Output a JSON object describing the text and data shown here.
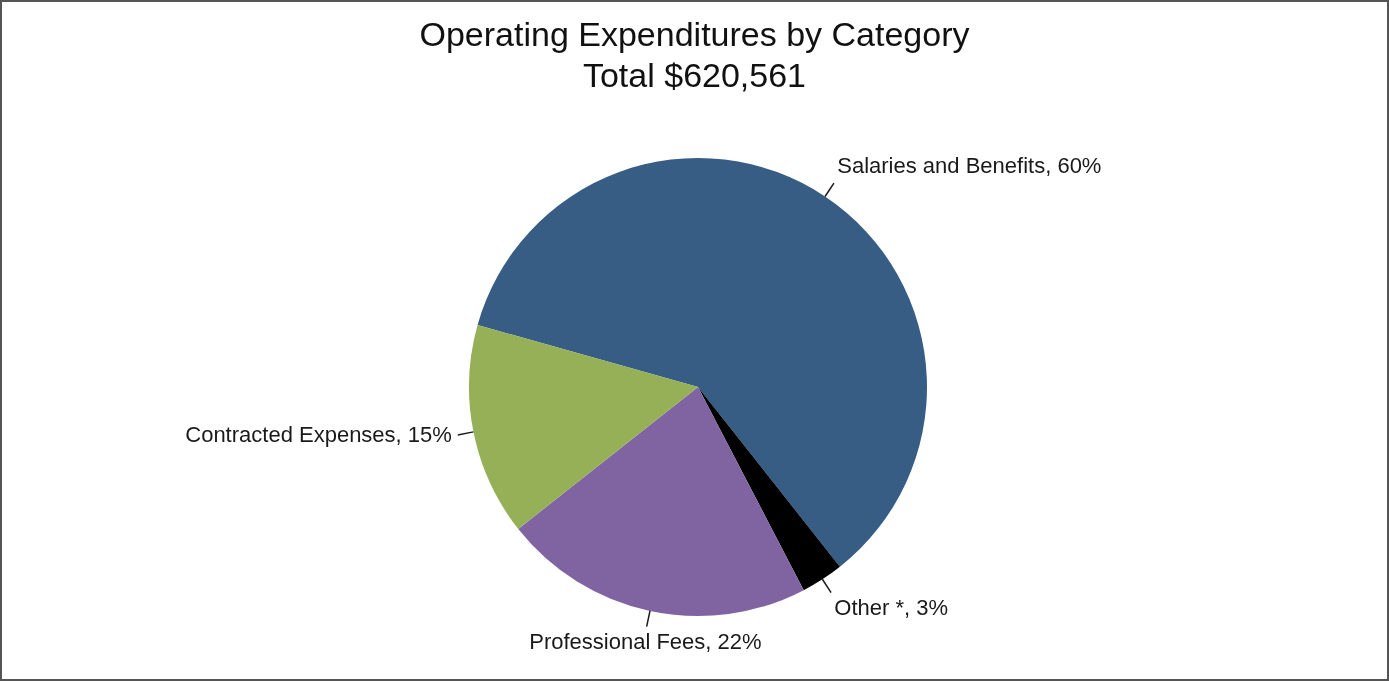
{
  "chart_data": {
    "type": "pie",
    "title": "Operating Expenditures by Category",
    "subtitle": "Total $620,561",
    "categories": [
      "Salaries and Benefits",
      "Other *",
      "Professional Fees",
      "Contracted Expenses"
    ],
    "values": [
      60,
      3,
      22,
      15
    ],
    "value_labels": [
      "60%",
      "3%",
      "22%",
      "15%"
    ],
    "colors": [
      "#375d85",
      "#000000",
      "#8064a2",
      "#95b057"
    ],
    "legend": false
  }
}
